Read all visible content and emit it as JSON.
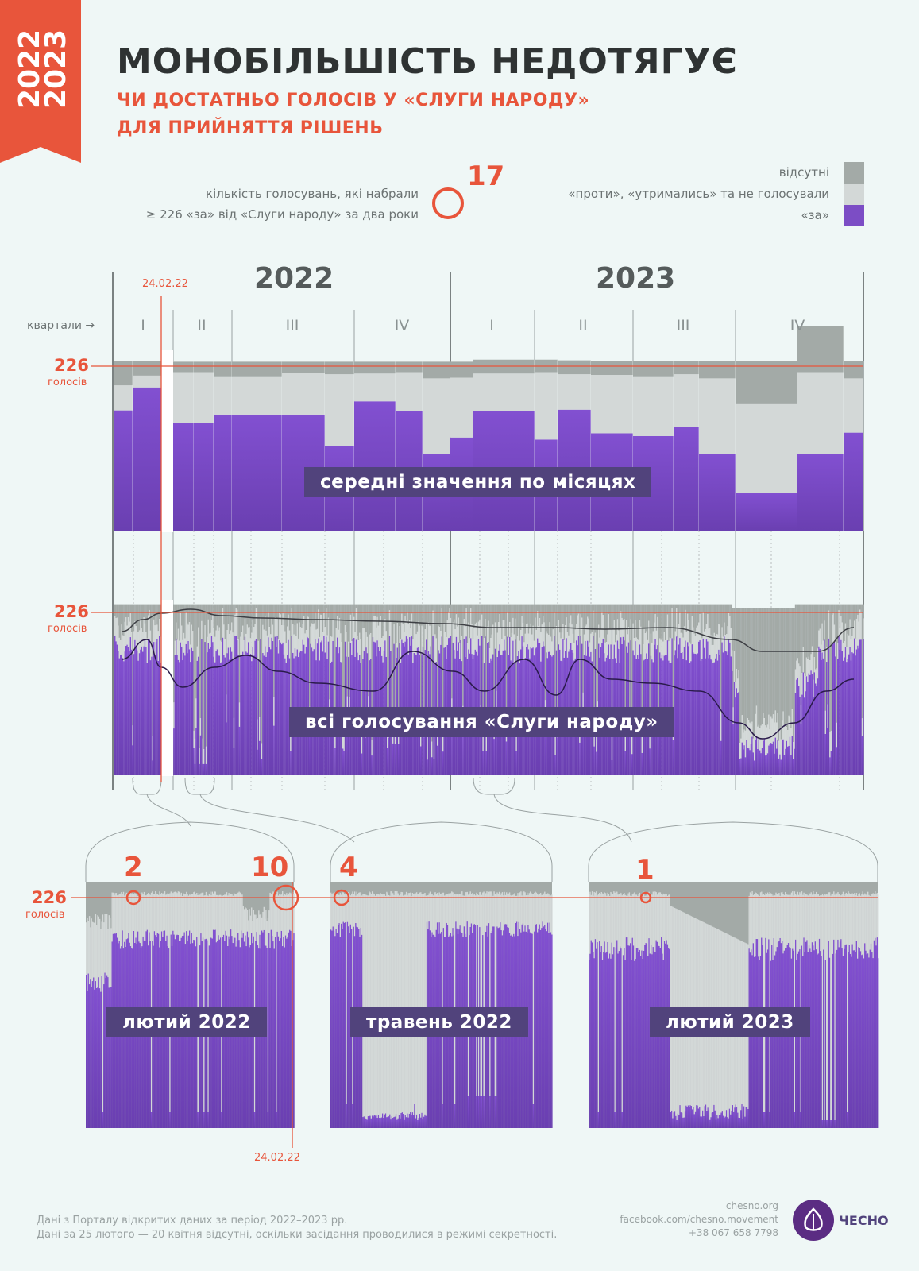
{
  "badge": {
    "years": [
      "2022",
      "2023"
    ]
  },
  "header": {
    "title": "МОНОБІЛЬШІСТЬ НЕДОТЯГУЄ",
    "subtitle_line1": "ЧИ ДОСТАТНЬО ГОЛОСІВ У «СЛУГИ НАРОДУ»",
    "subtitle_line2": "ДЛЯ ПРИЙНЯТТЯ РІШЕНЬ"
  },
  "counter": {
    "label_line1": "кількість голосувань, які набрали",
    "label_line2": "≥ 226 «за» від «Слуги народу» за два роки",
    "value": "17"
  },
  "legend": {
    "items": [
      {
        "label": "відсутні",
        "color": "#a3aaa7"
      },
      {
        "label": "«проти», «утримались» та не голосували",
        "color": "#d3d8d7"
      },
      {
        "label": "«за»",
        "color": "#7c4dc5"
      }
    ]
  },
  "colors": {
    "absent": "#a3aaa7",
    "other": "#d3d8d7",
    "for": "#7c4dc5",
    "accent": "#e8553b",
    "label_bg": "#51437c"
  },
  "chart_data": [
    {
      "type": "bar",
      "name": "monthly",
      "label": "середні значення по місяцях",
      "threshold": 226,
      "threshold_label": "226",
      "threshold_unit": "голосів",
      "years": [
        "2022",
        "2023"
      ],
      "quarters_caption": "квартали →",
      "quarters": [
        "I",
        "II",
        "III",
        "IV",
        "I",
        "II",
        "III",
        "IV"
      ],
      "event_label": "24.02.22",
      "x": [
        "2022-01",
        "2022-02",
        "2022-04",
        "2022-05",
        "2022-06",
        "2022-07",
        "2022-08",
        "2022-09",
        "2022-10",
        "2022-11",
        "2022-12",
        "2023-01",
        "2023-02",
        "2023-03",
        "2023-04",
        "2023-05",
        "2023-06",
        "2023-07",
        "2023-08",
        "2023-09",
        "2023-10",
        "2023-11",
        "2023-12"
      ],
      "series": [
        {
          "key": "for",
          "values": [
            173,
            206,
            147,
            155,
            155,
            167,
            167,
            167,
            122,
            186,
            172,
            110,
            134,
            172,
            131,
            174,
            140,
            136,
            149,
            110,
            54,
            110,
            141
          ]
        },
        {
          "key": "other",
          "values": [
            36,
            17,
            80,
            73,
            73,
            55,
            55,
            60,
            103,
            40,
            56,
            109,
            86,
            54,
            97,
            51,
            84,
            86,
            76,
            109,
            129,
            118,
            78
          ]
        },
        {
          "key": "absent",
          "values": [
            35,
            21,
            17,
            15,
            15,
            21,
            21,
            16,
            18,
            17,
            15,
            24,
            23,
            20,
            18,
            20,
            20,
            22,
            19,
            25,
            61,
            66,
            25
          ]
        }
      ],
      "ylim": [
        0,
        250
      ]
    },
    {
      "type": "area",
      "name": "all-votes",
      "label": "всі голосування «Слуги народу»",
      "threshold": 226,
      "threshold_label": "226",
      "threshold_unit": "голосів",
      "description": "stacked per-vote bars; lines show rolling average of present and «за»",
      "ylim": [
        0,
        250
      ]
    },
    {
      "type": "area",
      "name": "zoom-feb-2022",
      "label": "лютий 2022",
      "marks": [
        "2",
        "10"
      ],
      "event_label": "24.02.22",
      "threshold_label": "226",
      "threshold_unit": "голосів"
    },
    {
      "type": "area",
      "name": "zoom-may-2022",
      "label": "травень 2022",
      "marks": [
        "4"
      ]
    },
    {
      "type": "area",
      "name": "zoom-feb-2023",
      "label": "лютий 2023",
      "marks": [
        "1"
      ]
    }
  ],
  "footer": {
    "source_line1": "Дані з Порталу відкритих даних за період 2022–2023 рр.",
    "source_line2": "Дані за 25 лютого — 20 квітня відсутні, оскільки засідання проводилися в режимі секретності.",
    "site": "chesno.org",
    "facebook": "facebook.com/chesno.movement",
    "phone": "+38 067 658 7798",
    "logo": "ЧЕСНО"
  }
}
